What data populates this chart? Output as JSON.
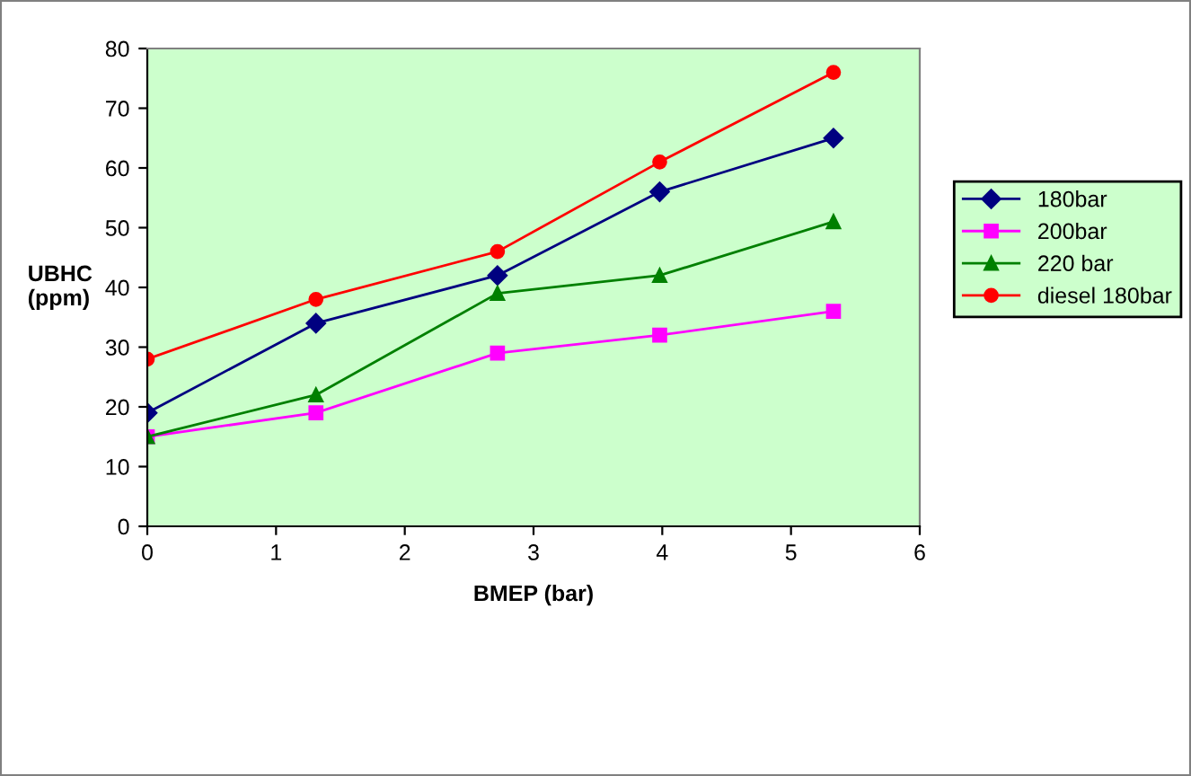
{
  "chart_data": {
    "type": "line",
    "xlabel": "BMEP (bar)",
    "ylabel": "UBHC\n(ppm)",
    "x": [
      0,
      1.31,
      2.72,
      3.98,
      5.33
    ],
    "series": [
      {
        "name": "180bar",
        "color": "#000080",
        "marker": "diamond",
        "values": [
          19,
          34,
          42,
          56,
          65
        ]
      },
      {
        "name": "200bar",
        "color": "#ff00ff",
        "marker": "square",
        "values": [
          15,
          19,
          29,
          32,
          36
        ]
      },
      {
        "name": "220 bar",
        "color": "#008000",
        "marker": "triangle",
        "values": [
          15,
          22,
          39,
          42,
          51
        ]
      },
      {
        "name": "diesel 180bar",
        "color": "#ff0000",
        "marker": "circle",
        "values": [
          28,
          38,
          46,
          61,
          76
        ]
      }
    ],
    "xlim": [
      0,
      6
    ],
    "xticks": [
      0,
      1,
      2,
      3,
      4,
      5,
      6
    ],
    "ylim": [
      0,
      80
    ],
    "yticks": [
      0,
      10,
      20,
      30,
      40,
      50,
      60,
      70,
      80
    ],
    "grid": false,
    "legend": "right",
    "line_style": "solid"
  }
}
